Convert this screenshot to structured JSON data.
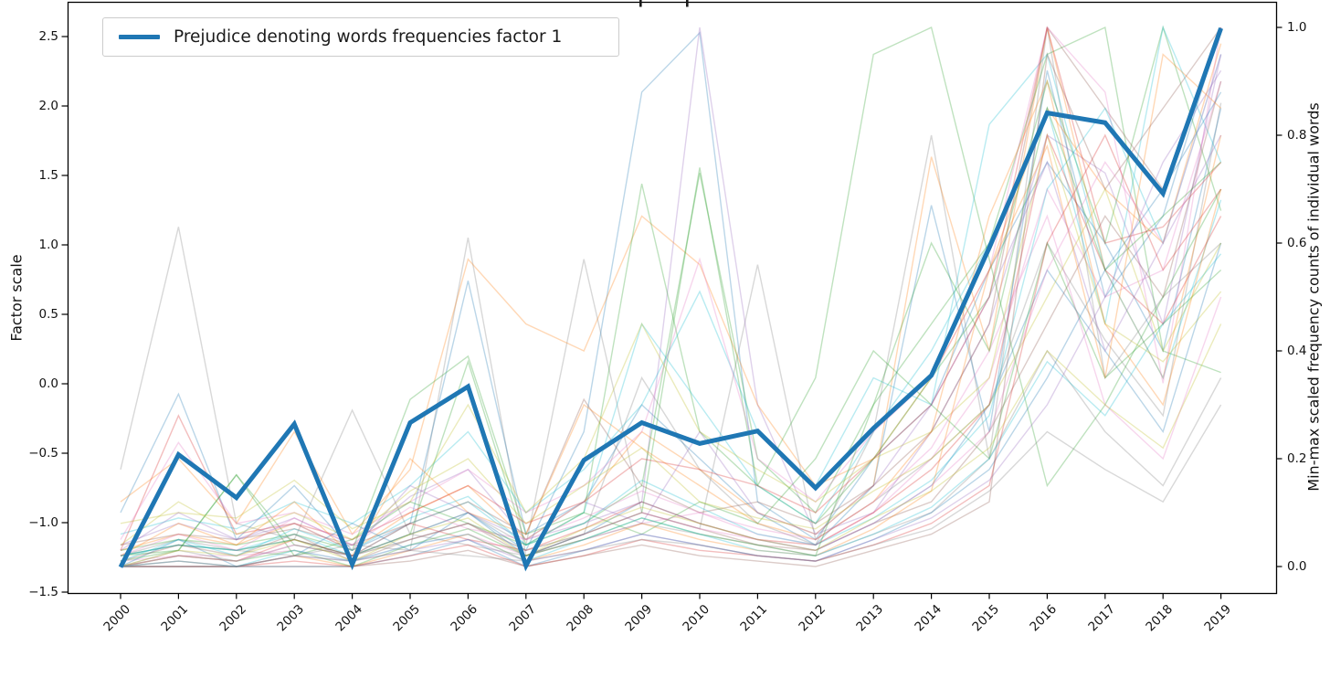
{
  "figure": {
    "legend": {
      "label": "Prejudice denoting words frequencies factor 1",
      "line_color": "#1f77b4"
    },
    "left_axis_label": "Factor scale",
    "right_axis_label": "Min-max scaled frequency counts of individual words"
  },
  "chart_data": {
    "type": "line",
    "title": "",
    "x": [
      "2000",
      "2001",
      "2002",
      "2003",
      "2004",
      "2005",
      "2006",
      "2007",
      "2008",
      "2009",
      "2010",
      "2011",
      "2012",
      "2013",
      "2014",
      "2015",
      "2016",
      "2017",
      "2018",
      "2019"
    ],
    "x_tick_rotation_deg": 45,
    "grid": false,
    "legend_position": "upper left",
    "left_axis": {
      "label": "Factor scale",
      "range": [
        -1.5,
        2.73
      ],
      "ticks": [
        {
          "label": "2.5",
          "value": 2.5
        },
        {
          "label": "2.0",
          "value": 2.0
        },
        {
          "label": "1.5",
          "value": 1.5
        },
        {
          "label": "1.0",
          "value": 1.0
        },
        {
          "label": "0.5",
          "value": 0.5
        },
        {
          "label": "0.0",
          "value": 0.0
        },
        {
          "label": "−0.5",
          "value": -0.5
        },
        {
          "label": "−1.0",
          "value": -1.0
        },
        {
          "label": "−1.5",
          "value": -1.5
        }
      ]
    },
    "right_axis": {
      "label": "Min-max scaled frequency counts of individual words",
      "range": [
        -0.05,
        1.05
      ],
      "ticks": [
        {
          "label": "1.0",
          "value": 1.0
        },
        {
          "label": "0.8",
          "value": 0.8
        },
        {
          "label": "0.6",
          "value": 0.6
        },
        {
          "label": "0.4",
          "value": 0.4
        },
        {
          "label": "0.2",
          "value": 0.2
        },
        {
          "label": "0.0",
          "value": 0.0
        }
      ]
    },
    "main_series": {
      "name": "Prejudice denoting words frequencies factor 1",
      "axis": "left",
      "color": "#1f77b4",
      "line_width": 5,
      "values": [
        -1.32,
        -0.51,
        -0.82,
        -0.29,
        -1.3,
        -0.28,
        -0.02,
        -1.31,
        -0.55,
        -0.28,
        -0.43,
        -0.34,
        -0.75,
        -0.32,
        0.06,
        0.98,
        1.95,
        1.88,
        1.37,
        2.56
      ]
    },
    "background_series": {
      "axis": "right",
      "opacity": 0.3,
      "line_width": 1.4,
      "lines": [
        {
          "color": "#7f7f7f",
          "values": [
            0.18,
            0.63,
            0.08,
            0.05,
            0.29,
            0.06,
            0.1,
            0.04,
            0.57,
            0.1,
            0.07,
            0.56,
            0.05,
            0.12,
            0.2,
            0.3,
            0.6,
            0.42,
            0.28,
            0.86
          ]
        },
        {
          "color": "#7f7f7f",
          "values": [
            0.02,
            0.05,
            0.03,
            0.02,
            0.04,
            0.03,
            0.61,
            0.02,
            0.06,
            0.35,
            0.18,
            0.08,
            0.04,
            0.25,
            0.8,
            0.2,
            1.0,
            0.35,
            0.5,
            0.6
          ]
        },
        {
          "color": "#1f77b4",
          "values": [
            0.1,
            0.32,
            0.05,
            0.15,
            0.03,
            0.08,
            0.53,
            0.06,
            0.12,
            0.3,
            0.2,
            0.1,
            0.04,
            0.15,
            0.67,
            0.25,
            0.92,
            0.5,
            0.65,
            1.0
          ]
        },
        {
          "color": "#1f77b4",
          "values": [
            0.02,
            0.04,
            0.03,
            0.05,
            0.02,
            0.06,
            0.1,
            0.03,
            0.25,
            0.88,
            0.99,
            0.12,
            0.05,
            0.2,
            0.3,
            0.55,
            0.75,
            0.6,
            0.4,
            0.85
          ]
        },
        {
          "color": "#9467bd",
          "values": [
            0.04,
            0.08,
            0.05,
            0.09,
            0.04,
            0.13,
            0.18,
            0.05,
            0.08,
            0.12,
            1.0,
            0.3,
            0.06,
            0.1,
            0.25,
            0.45,
            0.8,
            0.73,
            0.45,
            0.95
          ]
        },
        {
          "color": "#ff7f0e",
          "values": [
            0.12,
            0.2,
            0.08,
            0.25,
            0.06,
            0.18,
            0.57,
            0.45,
            0.4,
            0.65,
            0.56,
            0.3,
            0.15,
            0.2,
            0.35,
            0.55,
            0.85,
            0.7,
            0.6,
            0.97
          ]
        },
        {
          "color": "#ff7f0e",
          "values": [
            0.03,
            0.06,
            0.04,
            0.08,
            0.03,
            0.1,
            0.15,
            0.05,
            0.12,
            0.25,
            0.18,
            0.1,
            0.06,
            0.15,
            0.76,
            0.4,
            1.0,
            0.55,
            0.35,
            0.8
          ]
        },
        {
          "color": "#2ca02c",
          "values": [
            0.03,
            0.05,
            0.04,
            0.06,
            0.03,
            0.31,
            0.39,
            0.06,
            0.1,
            0.71,
            0.25,
            0.15,
            0.35,
            0.95,
            1.0,
            0.57,
            0.15,
            0.3,
            0.5,
            0.7
          ]
        },
        {
          "color": "#2ca02c",
          "values": [
            0.02,
            0.04,
            0.03,
            0.05,
            0.02,
            0.06,
            0.38,
            0.04,
            0.08,
            0.15,
            0.73,
            0.2,
            0.1,
            0.3,
            0.45,
            0.6,
            0.95,
            1.0,
            0.4,
            0.36
          ]
        },
        {
          "color": "#2ca02c",
          "values": [
            0.02,
            0.03,
            0.17,
            0.04,
            0.02,
            0.05,
            0.08,
            0.03,
            0.06,
            0.1,
            0.74,
            0.15,
            0.08,
            0.2,
            0.35,
            0.5,
            0.9,
            0.6,
            1.0,
            0.66
          ]
        },
        {
          "color": "#17becf",
          "values": [
            0.06,
            0.09,
            0.07,
            0.12,
            0.08,
            0.15,
            0.25,
            0.1,
            0.18,
            0.3,
            0.51,
            0.25,
            0.15,
            0.35,
            0.3,
            0.82,
            0.95,
            0.55,
            0.35,
            0.68
          ]
        },
        {
          "color": "#17becf",
          "values": [
            0.02,
            0.04,
            0.03,
            0.06,
            0.02,
            0.08,
            0.12,
            0.04,
            0.1,
            0.45,
            0.3,
            0.15,
            0.08,
            0.25,
            0.4,
            0.6,
            0.85,
            0.45,
            1.0,
            0.75
          ]
        },
        {
          "color": "#8c564b",
          "values": [
            0.04,
            0.06,
            0.05,
            0.07,
            0.04,
            0.08,
            0.12,
            0.06,
            0.31,
            0.15,
            0.1,
            0.12,
            0.08,
            0.15,
            0.25,
            0.45,
            1.0,
            0.85,
            0.7,
            1.0
          ]
        },
        {
          "color": "#d62728",
          "values": [
            0.03,
            0.28,
            0.06,
            0.08,
            0.05,
            0.1,
            0.15,
            0.08,
            0.12,
            0.2,
            0.18,
            0.15,
            0.1,
            0.2,
            0.3,
            0.5,
            1.0,
            0.6,
            0.63,
            0.75
          ]
        },
        {
          "color": "#e377c2",
          "values": [
            0.05,
            0.23,
            0.08,
            0.1,
            0.06,
            0.12,
            0.18,
            0.1,
            0.15,
            0.25,
            0.57,
            0.2,
            0.12,
            0.25,
            0.35,
            0.55,
            1.0,
            0.88,
            0.34,
            1.0
          ]
        },
        {
          "color": "#e377c2",
          "values": [
            0.01,
            0.02,
            0.02,
            0.03,
            0.01,
            0.04,
            0.06,
            0.02,
            0.05,
            0.08,
            0.1,
            0.06,
            0.04,
            0.1,
            0.2,
            0.35,
            0.7,
            0.5,
            0.55,
            0.9
          ]
        },
        {
          "color": "#bcbd22",
          "values": [
            0.08,
            0.1,
            0.09,
            0.16,
            0.07,
            0.12,
            0.3,
            0.1,
            0.2,
            0.45,
            0.25,
            0.18,
            0.12,
            0.2,
            0.25,
            0.35,
            0.8,
            0.45,
            0.38,
            0.51
          ]
        },
        {
          "color": "#1f77b4",
          "values": [
            0.0,
            0.05,
            0.0,
            0.02,
            0.08,
            0.03,
            0.1,
            0.02,
            0.06,
            0.12,
            0.08,
            0.05,
            0.03,
            0.08,
            0.15,
            0.3,
            0.55,
            0.4,
            0.25,
            0.6
          ]
        },
        {
          "color": "#ff7f0e",
          "values": [
            0.02,
            0.08,
            0.04,
            0.12,
            0.02,
            0.2,
            0.1,
            0.06,
            0.3,
            0.22,
            0.15,
            0.08,
            0.05,
            0.12,
            0.25,
            0.65,
            0.9,
            0.45,
            0.3,
            0.7
          ]
        },
        {
          "color": "#2ca02c",
          "values": [
            0.01,
            0.03,
            0.17,
            0.02,
            0.05,
            0.12,
            0.08,
            0.04,
            0.1,
            0.06,
            0.12,
            0.08,
            0.2,
            0.4,
            0.3,
            0.2,
            0.6,
            0.35,
            0.45,
            0.55
          ]
        },
        {
          "color": "#d62728",
          "values": [
            0.0,
            0.02,
            0.01,
            0.05,
            0.02,
            0.08,
            0.05,
            0.03,
            0.07,
            0.12,
            0.08,
            0.05,
            0.04,
            0.1,
            0.18,
            0.3,
            0.8,
            0.55,
            0.45,
            0.65
          ]
        },
        {
          "color": "#9467bd",
          "values": [
            0.03,
            0.1,
            0.05,
            0.08,
            0.03,
            0.15,
            0.1,
            0.05,
            0.12,
            0.08,
            0.25,
            0.1,
            0.06,
            0.15,
            0.3,
            0.5,
            0.75,
            0.4,
            0.6,
            0.8
          ]
        },
        {
          "color": "#8c564b",
          "values": [
            0.01,
            0.04,
            0.02,
            0.06,
            0.01,
            0.05,
            0.08,
            0.02,
            0.06,
            0.1,
            0.07,
            0.04,
            0.03,
            0.08,
            0.12,
            0.25,
            0.45,
            0.65,
            0.5,
            0.9
          ]
        },
        {
          "color": "#e377c2",
          "values": [
            0.02,
            0.06,
            0.03,
            0.09,
            0.04,
            0.11,
            0.07,
            0.05,
            0.09,
            0.14,
            0.1,
            0.07,
            0.05,
            0.12,
            0.22,
            0.4,
            0.65,
            0.3,
            0.2,
            0.5
          ]
        },
        {
          "color": "#7f7f7f",
          "values": [
            0.0,
            0.03,
            0.01,
            0.04,
            0.02,
            0.06,
            0.04,
            0.02,
            0.05,
            0.08,
            0.06,
            0.04,
            0.02,
            0.06,
            0.1,
            0.2,
            0.4,
            0.25,
            0.15,
            0.35
          ]
        },
        {
          "color": "#bcbd22",
          "values": [
            0.04,
            0.12,
            0.06,
            0.1,
            0.05,
            0.14,
            0.2,
            0.08,
            0.15,
            0.22,
            0.12,
            0.09,
            0.07,
            0.14,
            0.2,
            0.3,
            0.5,
            0.7,
            0.4,
            0.6
          ]
        },
        {
          "color": "#17becf",
          "values": [
            0.01,
            0.05,
            0.02,
            0.07,
            0.03,
            0.09,
            0.13,
            0.04,
            0.08,
            0.16,
            0.11,
            0.06,
            0.04,
            0.09,
            0.16,
            0.28,
            0.7,
            0.85,
            0.6,
            0.95
          ]
        },
        {
          "color": "#1f77b4",
          "values": [
            0.0,
            0.0,
            0.0,
            0.0,
            0.0,
            0.02,
            0.05,
            0.0,
            0.03,
            0.06,
            0.04,
            0.02,
            0.01,
            0.05,
            0.1,
            0.18,
            0.35,
            0.55,
            0.7,
            0.88
          ]
        },
        {
          "color": "#ff7f0e",
          "values": [
            0.0,
            0.01,
            0.0,
            0.02,
            0.0,
            0.03,
            0.06,
            0.01,
            0.04,
            0.08,
            0.05,
            0.03,
            0.02,
            0.07,
            0.14,
            0.55,
            0.78,
            0.35,
            0.95,
            0.85
          ]
        },
        {
          "color": "#2ca02c",
          "values": [
            0.0,
            0.02,
            0.01,
            0.03,
            0.0,
            0.04,
            0.07,
            0.02,
            0.05,
            0.09,
            0.06,
            0.04,
            0.02,
            0.3,
            0.6,
            0.4,
            0.85,
            0.55,
            0.65,
            0.75
          ]
        },
        {
          "color": "#d62728",
          "values": [
            0.0,
            0.0,
            0.0,
            0.01,
            0.0,
            0.02,
            0.04,
            0.0,
            0.02,
            0.05,
            0.03,
            0.02,
            0.01,
            0.04,
            0.08,
            0.15,
            0.6,
            0.8,
            0.55,
            0.7
          ]
        },
        {
          "color": "#9467bd",
          "values": [
            0.0,
            0.01,
            0.0,
            0.02,
            0.01,
            0.03,
            0.05,
            0.01,
            0.03,
            0.06,
            0.04,
            0.02,
            0.01,
            0.05,
            0.09,
            0.16,
            0.3,
            0.5,
            0.75,
            0.92
          ]
        },
        {
          "color": "#8c564b",
          "values": [
            0.0,
            0.0,
            0.0,
            0.0,
            0.0,
            0.01,
            0.03,
            0.0,
            0.02,
            0.04,
            0.02,
            0.01,
            0.0,
            0.03,
            0.06,
            0.12,
            0.95,
            0.7,
            0.85,
            1.0
          ]
        },
        {
          "color": "#e377c2",
          "values": [
            0.0,
            0.02,
            0.01,
            0.04,
            0.02,
            0.05,
            0.08,
            0.03,
            0.06,
            0.1,
            0.07,
            0.05,
            0.03,
            0.08,
            0.15,
            0.25,
            0.55,
            0.75,
            0.6,
            0.95
          ]
        },
        {
          "color": "#7f7f7f",
          "values": [
            0.0,
            0.0,
            0.0,
            0.02,
            0.01,
            0.03,
            0.02,
            0.01,
            0.03,
            0.05,
            0.04,
            0.02,
            0.01,
            0.04,
            0.07,
            0.14,
            0.25,
            0.18,
            0.12,
            0.3
          ]
        },
        {
          "color": "#bcbd22",
          "values": [
            0.0,
            0.03,
            0.02,
            0.05,
            0.01,
            0.06,
            0.09,
            0.02,
            0.07,
            0.11,
            0.08,
            0.05,
            0.03,
            0.09,
            0.14,
            0.22,
            0.4,
            0.3,
            0.22,
            0.45
          ]
        },
        {
          "color": "#17becf",
          "values": [
            0.0,
            0.01,
            0.0,
            0.03,
            0.01,
            0.04,
            0.06,
            0.01,
            0.05,
            0.09,
            0.06,
            0.03,
            0.02,
            0.06,
            0.11,
            0.2,
            0.38,
            0.28,
            0.45,
            0.58
          ]
        }
      ]
    }
  }
}
